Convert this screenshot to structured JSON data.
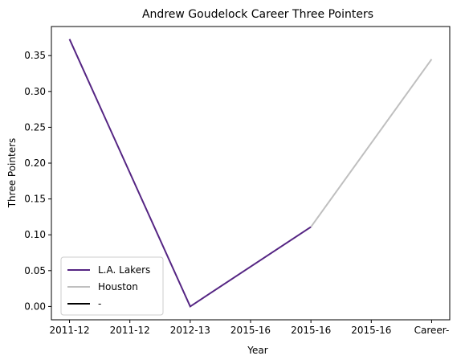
{
  "chart_data": {
    "type": "line",
    "title": "Andrew Goudelock Career Three Pointers",
    "xlabel": "Year",
    "ylabel": "Three Pointers",
    "categories": [
      "2011-12",
      "2011-12",
      "2012-13",
      "2015-16",
      "2015-16",
      "2015-16",
      "Career-"
    ],
    "ylim": [
      -0.0186,
      0.3906
    ],
    "yticks": [
      "0.00",
      "0.05",
      "0.10",
      "0.15",
      "0.20",
      "0.25",
      "0.30",
      "0.35"
    ],
    "grid": false,
    "legend_position": "lower-left",
    "series": [
      {
        "name": "L.A. Lakers",
        "color": "#552583",
        "points": [
          [
            0,
            0.373
          ],
          [
            2,
            0.0
          ],
          [
            4,
            0.111
          ]
        ]
      },
      {
        "name": "Houston",
        "color": "#bfbfbf",
        "points": [
          [
            4,
            0.111
          ],
          [
            6,
            0.345
          ]
        ]
      },
      {
        "name": "-",
        "color": "#000000",
        "points": []
      }
    ]
  }
}
